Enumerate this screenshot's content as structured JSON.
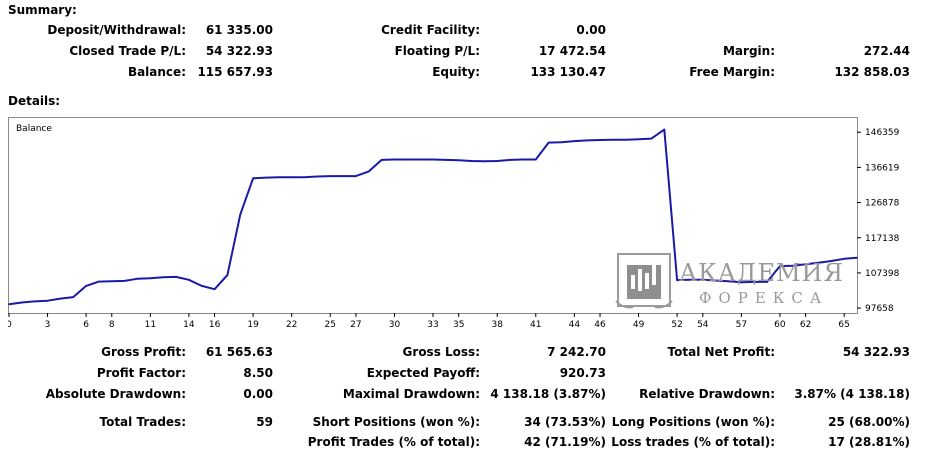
{
  "summary": {
    "heading": "Summary:",
    "deposit_label": "Deposit/Withdrawal:",
    "deposit_value": "61 335.00",
    "credit_label": "Credit Facility:",
    "credit_value": "0.00",
    "closed_pl_label": "Closed Trade P/L:",
    "closed_pl_value": "54 322.93",
    "floating_pl_label": "Floating P/L:",
    "floating_pl_value": "17 472.54",
    "margin_label": "Margin:",
    "margin_value": "272.44",
    "balance_label": "Balance:",
    "balance_value": "115 657.93",
    "equity_label": "Equity:",
    "equity_value": "133 130.47",
    "free_margin_label": "Free Margin:",
    "free_margin_value": "132 858.03"
  },
  "details": {
    "heading": "Details:",
    "gross_profit_label": "Gross Profit:",
    "gross_profit_value": "61 565.63",
    "gross_loss_label": "Gross Loss:",
    "gross_loss_value": "7 242.70",
    "total_net_label": "Total Net Profit:",
    "total_net_value": "54 322.93",
    "profit_factor_label": "Profit Factor:",
    "profit_factor_value": "8.50",
    "expected_payoff_label": "Expected Payoff:",
    "expected_payoff_value": "920.73",
    "abs_dd_label": "Absolute Drawdown:",
    "abs_dd_value": "0.00",
    "max_dd_label": "Maximal Drawdown:",
    "max_dd_value": "4 138.18 (3.87%)",
    "rel_dd_label": "Relative Drawdown:",
    "rel_dd_value": "3.87% (4 138.18)",
    "total_trades_label": "Total Trades:",
    "total_trades_value": "59",
    "short_label": "Short Positions (won %):",
    "short_value": "34 (73.53%)",
    "long_label": "Long Positions (won %):",
    "long_value": "25 (68.00%)",
    "profit_trades_label": "Profit Trades (% of total):",
    "profit_trades_value": "42 (71.19%)",
    "loss_trades_label": "Loss trades (% of total):",
    "loss_trades_value": "17 (28.81%)"
  },
  "watermark": {
    "line1": "АКАДЕМИЯ",
    "line2": "ФОРЕКСА"
  },
  "colors": {
    "line": "#1a1aa8",
    "axis": "#000000",
    "watermark": "#9a9a9a"
  },
  "chart_data": {
    "type": "line",
    "title": "Balance",
    "x_ticks": [
      "0",
      "3",
      "6",
      "8",
      "11",
      "14",
      "16",
      "19",
      "22",
      "25",
      "27",
      "30",
      "33",
      "35",
      "38",
      "41",
      "44",
      "46",
      "49",
      "52",
      "54",
      "57",
      "60",
      "62",
      "65"
    ],
    "y_ticks": [
      "146359",
      "136619",
      "126878",
      "117138",
      "107398",
      "97658"
    ],
    "xlim": [
      0,
      66
    ],
    "ylim": [
      96300,
      150300
    ],
    "grid": false,
    "series": [
      {
        "x": [
          0,
          1,
          2,
          3,
          4,
          5,
          6,
          7,
          8,
          9,
          10,
          11,
          12,
          13,
          14,
          15,
          16,
          17,
          18,
          19,
          20,
          21,
          22,
          23,
          24,
          25,
          26,
          27,
          28,
          29,
          30,
          31,
          32,
          33,
          34,
          35,
          36,
          37,
          38,
          39,
          40,
          41,
          42,
          43,
          44,
          45,
          46,
          47,
          48,
          49,
          50,
          51,
          52,
          53,
          54,
          55,
          56,
          57,
          58,
          59,
          60,
          61,
          62,
          63,
          64,
          65,
          66
        ],
        "y": [
          98700,
          99200,
          99500,
          99700,
          100300,
          100700,
          103800,
          105000,
          105100,
          105200,
          105800,
          105900,
          106200,
          106300,
          105500,
          103800,
          102900,
          106800,
          123600,
          133600,
          133800,
          133900,
          133900,
          133900,
          134100,
          134200,
          134200,
          134200,
          135500,
          138700,
          138800,
          138800,
          138800,
          138800,
          138700,
          138600,
          138400,
          138300,
          138400,
          138700,
          138800,
          138800,
          143500,
          143600,
          143900,
          144100,
          144200,
          144300,
          144300,
          144400,
          144600,
          147100,
          105400,
          105500,
          105500,
          105300,
          105100,
          104800,
          104900,
          104900,
          109300,
          109400,
          109800,
          110200,
          110700,
          111300,
          111600
        ]
      }
    ]
  }
}
